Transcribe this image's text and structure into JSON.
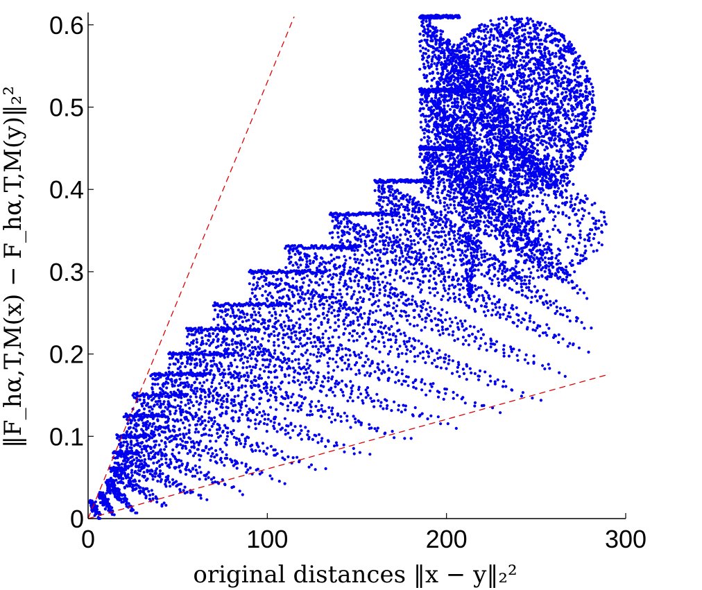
{
  "chart_data": {
    "type": "scatter",
    "xlabel": "original distances ‖x − y‖₂²",
    "ylabel": "‖F_hα,T,M(x) − F_hα,T,M(y)‖₂²",
    "xlim": [
      0,
      300
    ],
    "ylim": [
      0,
      0.615
    ],
    "xticks": [
      "0",
      "100",
      "200",
      "300"
    ],
    "xtick_values": [
      0,
      100,
      200,
      300
    ],
    "yticks": [
      "0",
      "0.1",
      "0.2",
      "0.3",
      "0.4",
      "0.5",
      "0.6"
    ],
    "ytick_values": [
      0,
      0.1,
      0.2,
      0.3,
      0.4,
      0.5,
      0.6
    ],
    "grid": false,
    "legend": "none",
    "series": [
      {
        "color": "#0000ee",
        "marker": "dot",
        "clusters": [
          {
            "x": [
              1,
              6
            ],
            "y": [
              0.0,
              0.02
            ]
          },
          {
            "x": [
              6,
              14
            ],
            "y": [
              0.005,
              0.03
            ]
          },
          {
            "x": [
              10,
              29
            ],
            "y": [
              0.01,
              0.045
            ]
          },
          {
            "x": [
              12,
              49
            ],
            "y": [
              0.02,
              0.06
            ]
          },
          {
            "x": [
              14,
              73
            ],
            "y": [
              0.03,
              0.08
            ]
          },
          {
            "x": [
              16,
              97
            ],
            "y": [
              0.04,
              0.1
            ]
          },
          {
            "x": [
              20,
              120
            ],
            "y": [
              0.055,
              0.125
            ]
          },
          {
            "x": [
              25,
              145
            ],
            "y": [
              0.07,
              0.15
            ]
          },
          {
            "x": [
              35,
              170
            ],
            "y": [
              0.09,
              0.175
            ]
          },
          {
            "x": [
              45,
              195
            ],
            "y": [
              0.11,
              0.2
            ]
          },
          {
            "x": [
              55,
              220
            ],
            "y": [
              0.13,
              0.23
            ]
          },
          {
            "x": [
              70,
              245
            ],
            "y": [
              0.15,
              0.26
            ]
          },
          {
            "x": [
              90,
              265
            ],
            "y": [
              0.17,
              0.3
            ]
          },
          {
            "x": [
              110,
              280
            ],
            "y": [
              0.2,
              0.33
            ]
          },
          {
            "x": [
              135,
              290
            ],
            "y": [
              0.23,
              0.37
            ]
          },
          {
            "x": [
              160,
              290
            ],
            "y": [
              0.26,
              0.41
            ]
          },
          {
            "x": [
              185,
              285
            ],
            "y": [
              0.3,
              0.45
            ]
          },
          {
            "x": [
              185,
              275
            ],
            "y": [
              0.33,
              0.52
            ]
          },
          {
            "x": [
              185,
              275
            ],
            "y": [
              0.42,
              0.61
            ]
          }
        ],
        "dense_region": {
          "x": [
            185,
            275
          ],
          "y": [
            0.27,
            0.61
          ]
        }
      }
    ],
    "reference_lines": [
      {
        "color": "#dd0000",
        "style": "dashed",
        "from": [
          0,
          0
        ],
        "to": [
          115,
          0.61
        ]
      },
      {
        "color": "#dd0000",
        "style": "dashed",
        "from": [
          0,
          0
        ],
        "to": [
          290,
          0.175
        ]
      }
    ]
  }
}
